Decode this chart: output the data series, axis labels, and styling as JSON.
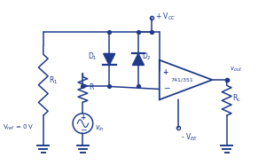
{
  "bg_color": "#ffffff",
  "circuit_color": "#1e3a8a",
  "figsize": [
    3.0,
    1.86
  ],
  "dpi": 100,
  "labels": {
    "vcc": "+ V$_{CC}$",
    "vee": "- V$_{EE}$",
    "vout": "$v_{out}$",
    "vref": "V$_{ref}$ = 0 V",
    "vin": "$v_{in}$",
    "d1": "D$_1$",
    "d2": "D$_2$",
    "r1": "R$_1$",
    "r": "R",
    "rl": "R$_L$",
    "opamp": "741/351"
  }
}
